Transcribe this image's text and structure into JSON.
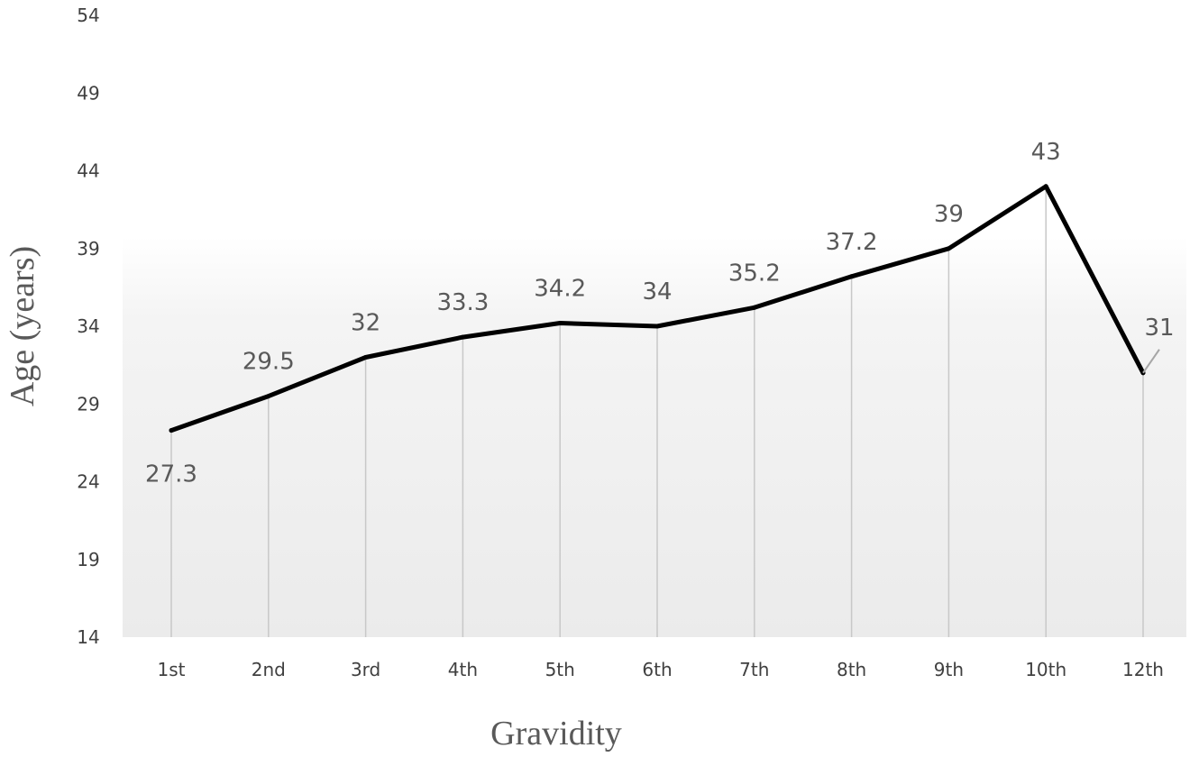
{
  "chart_data": {
    "type": "line",
    "xlabel": "Gravidity",
    "ylabel": "Age (years)",
    "categories": [
      "1st",
      "2nd",
      "3rd",
      "4th",
      "5th",
      "6th",
      "7th",
      "8th",
      "9th",
      "10th",
      "12th"
    ],
    "series": [
      {
        "values": [
          27.3,
          29.5,
          32,
          33.3,
          34.2,
          34,
          35.2,
          37.2,
          39,
          43,
          31
        ],
        "data_labels": [
          "27.3",
          "29.5",
          "32",
          "33.3",
          "34.2",
          "34",
          "35.2",
          "37.2",
          "39",
          "43",
          "31"
        ],
        "color": "#000000"
      }
    ],
    "ylim": [
      14,
      54
    ],
    "yticks": [
      14,
      19,
      24,
      29,
      34,
      39,
      44,
      49,
      54
    ],
    "grid": false,
    "drop_lines": true,
    "legend": "none",
    "colors": {
      "line": "#000000",
      "drop_line": "#c8c8c8",
      "tick_text": "#404040",
      "label_text": "#595959"
    }
  }
}
